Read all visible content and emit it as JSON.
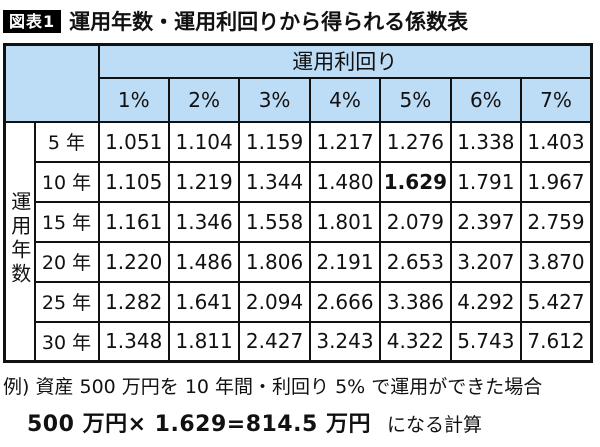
{
  "title": {
    "badge": "図表1",
    "text": "運用年数・運用利回りから得られる係数表"
  },
  "colors": {
    "header_bg": "#bddcf6",
    "border": "#111111",
    "badge_bg": "#000000",
    "badge_fg": "#ffffff",
    "text": "#111111"
  },
  "table": {
    "col_group_header": "運用利回り",
    "row_group_header": "運用年数",
    "col_headers": [
      "1%",
      "2%",
      "3%",
      "4%",
      "5%",
      "6%",
      "7%"
    ],
    "rows": [
      {
        "label": "5 年",
        "values": [
          "1.051",
          "1.104",
          "1.159",
          "1.217",
          "1.276",
          "1.338",
          "1.403"
        ],
        "bold_col": -1
      },
      {
        "label": "10 年",
        "values": [
          "1.105",
          "1.219",
          "1.344",
          "1.480",
          "1.629",
          "1.791",
          "1.967"
        ],
        "bold_col": 4
      },
      {
        "label": "15 年",
        "values": [
          "1.161",
          "1.346",
          "1.558",
          "1.801",
          "2.079",
          "2.397",
          "2.759"
        ],
        "bold_col": -1
      },
      {
        "label": "20 年",
        "values": [
          "1.220",
          "1.486",
          "1.806",
          "2.191",
          "2.653",
          "3.207",
          "3.870"
        ],
        "bold_col": -1
      },
      {
        "label": "25 年",
        "values": [
          "1.282",
          "1.641",
          "2.094",
          "2.666",
          "3.386",
          "4.292",
          "5.427"
        ],
        "bold_col": -1
      },
      {
        "label": "30 年",
        "values": [
          "1.348",
          "1.811",
          "2.427",
          "3.243",
          "4.322",
          "5.743",
          "7.612"
        ],
        "bold_col": -1
      }
    ]
  },
  "caption": {
    "line1": "例) 資産 500 万円を 10 年間・利回り 5% で運用ができた場合",
    "line2_bold": "500 万円× 1.629=814.5 万円",
    "line2_rest": "になる計算"
  },
  "chart_data": {
    "type": "table",
    "title": "運用年数・運用利回りから得られる係数表",
    "column_group_label": "運用利回り",
    "row_group_label": "運用年数",
    "columns": [
      "1%",
      "2%",
      "3%",
      "4%",
      "5%",
      "6%",
      "7%"
    ],
    "rows": [
      "5年",
      "10年",
      "15年",
      "20年",
      "25年",
      "30年"
    ],
    "values": [
      [
        1.051,
        1.104,
        1.159,
        1.217,
        1.276,
        1.338,
        1.403
      ],
      [
        1.105,
        1.219,
        1.344,
        1.48,
        1.629,
        1.791,
        1.967
      ],
      [
        1.161,
        1.346,
        1.558,
        1.801,
        2.079,
        2.397,
        2.759
      ],
      [
        1.22,
        1.486,
        1.806,
        2.191,
        2.653,
        3.207,
        3.87
      ],
      [
        1.282,
        1.641,
        2.094,
        2.666,
        3.386,
        4.292,
        5.427
      ],
      [
        1.348,
        1.811,
        2.427,
        3.243,
        4.322,
        5.743,
        7.612
      ]
    ],
    "highlight": {
      "row": "10年",
      "column": "5%",
      "value": 1.629
    }
  }
}
